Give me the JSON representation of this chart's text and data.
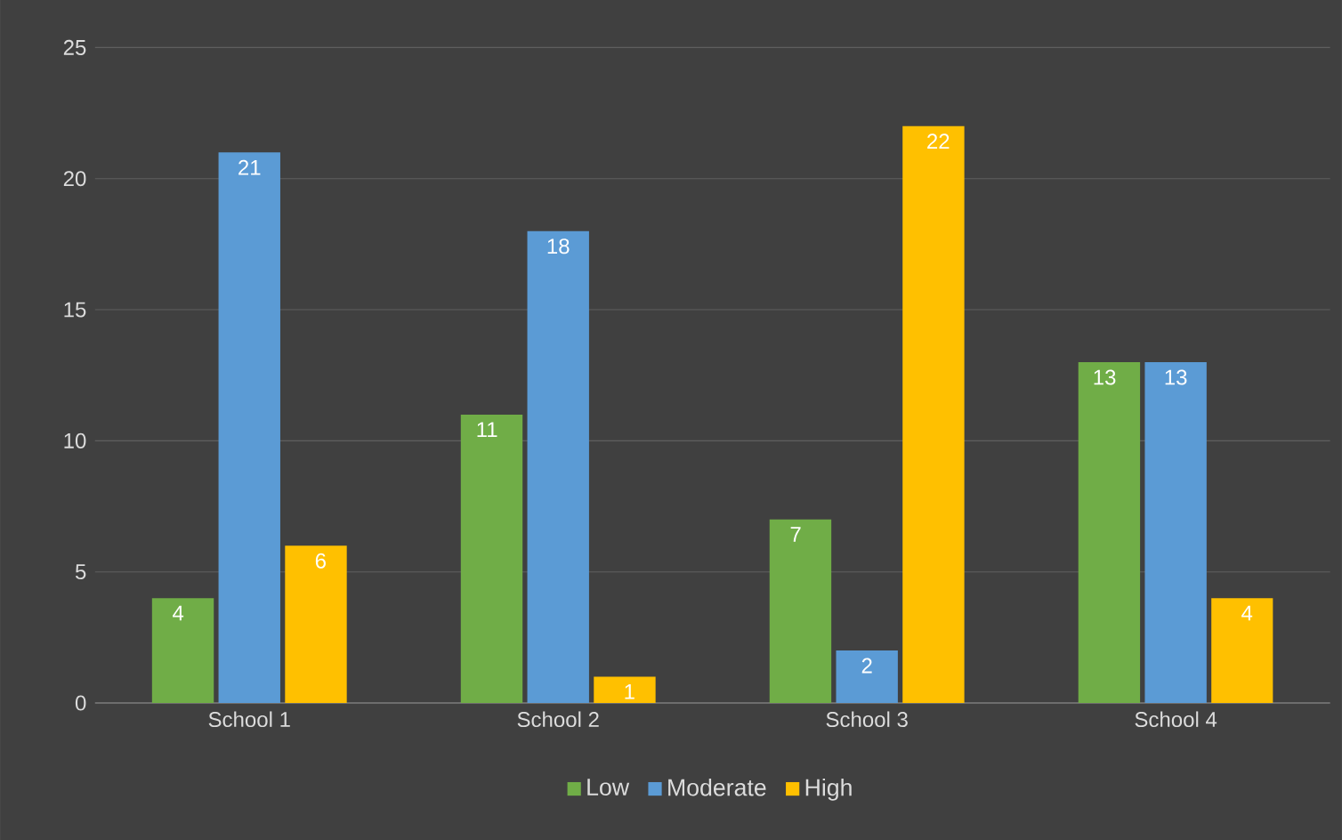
{
  "chart_data": {
    "type": "bar",
    "categories": [
      "School 1",
      "School 2",
      "School 3",
      "School 4"
    ],
    "series": [
      {
        "name": "Low",
        "color": "#70ad47",
        "values": [
          4,
          11,
          7,
          13
        ]
      },
      {
        "name": "Moderate",
        "color": "#5b9bd5",
        "values": [
          21,
          18,
          2,
          13
        ]
      },
      {
        "name": "High",
        "color": "#ffc000",
        "values": [
          6,
          1,
          22,
          4
        ]
      }
    ],
    "ylim": [
      0,
      25
    ],
    "yticks": [
      0,
      5,
      10,
      15,
      20,
      25
    ],
    "grid": "y",
    "legend": "bottom",
    "data_labels": true
  }
}
